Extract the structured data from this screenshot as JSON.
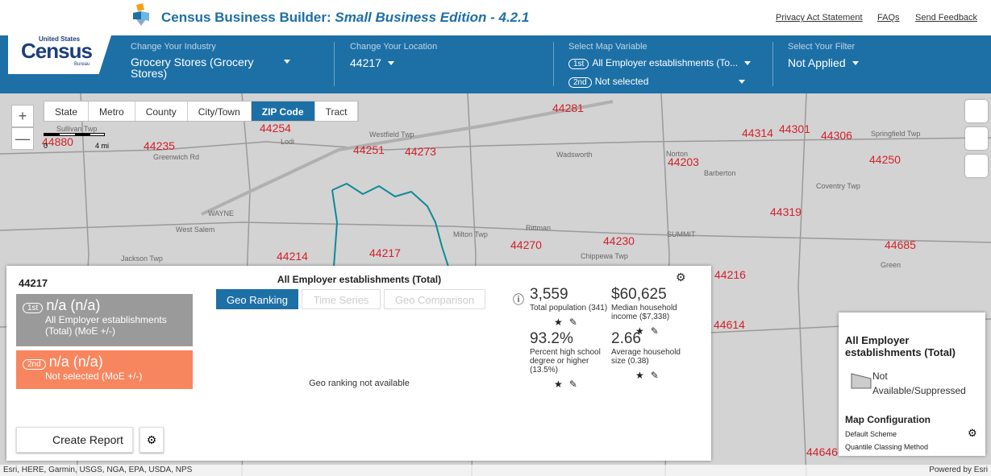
{
  "header": {
    "title": "Census Business Builder:",
    "title_italic": "Small Business Edition - 4.2.1",
    "links": [
      "Privacy Act Statement",
      "FAQs",
      "Send Feedback"
    ],
    "logo_top": "United States",
    "logo_main": "Census",
    "logo_bottom": "Bureau"
  },
  "toolbar": {
    "industry_label": "Change Your Industry",
    "industry_value": "Grocery Stores (Grocery Stores)",
    "location_label": "Change Your Location",
    "location_value": "44217",
    "variable_label": "Select Map Variable",
    "variable_1_badge": "1st",
    "variable_1": "All Employer establishments (To...",
    "variable_2_badge": "2nd",
    "variable_2": "Not selected",
    "filter_label": "Select Your Filter",
    "filter_value": "Not Applied"
  },
  "map": {
    "geo_tabs": [
      "State",
      "Metro",
      "County",
      "City/Town",
      "ZIP Code",
      "Tract"
    ],
    "active_tab": "ZIP Code",
    "zoom_in": "+",
    "zoom_out": "—",
    "scale_start": "0",
    "scale_end": "4 mi",
    "zip_labels": [
      "44880",
      "44235",
      "44254",
      "44251",
      "44273",
      "44281",
      "44314",
      "44301",
      "44306",
      "44203",
      "44250",
      "44319",
      "44230",
      "44270",
      "44214",
      "44217",
      "44685",
      "44216",
      "44614",
      "44646"
    ],
    "place_labels": [
      "Sullivan Twp",
      "Lodi",
      "Greenwich Rd",
      "Westfield Twp",
      "Wadsworth",
      "Norton",
      "Barberton",
      "WAYNE",
      "West Salem",
      "Jackson Twp",
      "Milton Twp",
      "Rittman",
      "Chippewa Twp",
      "Coventry Twp",
      "Green",
      "Springfield Twp",
      "SUMMIT"
    ],
    "attribution": "Esri, HERE, Garmin, USGS, NGA, EPA, USDA, NPS",
    "powered_by": "Powered by Esri"
  },
  "panel": {
    "zip": "44217",
    "heading": "All Employer establishments (Total)",
    "card_1_badge": "1st",
    "card_1_value": "n/a (n/a)",
    "card_1_label": "All Employer establishments (Total) (MoE +/-)",
    "card_2_badge": "2nd",
    "card_2_value": "n/a (n/a)",
    "card_2_label": "Not selected (MoE +/-)",
    "tabs": [
      "Geo Ranking",
      "Time Series",
      "Geo Comparison"
    ],
    "message": "Geo ranking not available",
    "stats": [
      {
        "value": "3,559",
        "label": "Total population (341)"
      },
      {
        "value": "$60,625",
        "label": "Median household income ($7,338)"
      },
      {
        "value": "93.2%",
        "label": "Percent high school degree or higher (13.5%)"
      },
      {
        "value": "2.66",
        "label": "Average household size (0.38)"
      }
    ],
    "create_report": "Create Report"
  },
  "legend": {
    "title": "All Employer establishments (Total)",
    "item": "Not Available/Suppressed",
    "config_title": "Map Configuration",
    "scheme": "Default Scheme",
    "method": "Quantile Classing Method"
  }
}
